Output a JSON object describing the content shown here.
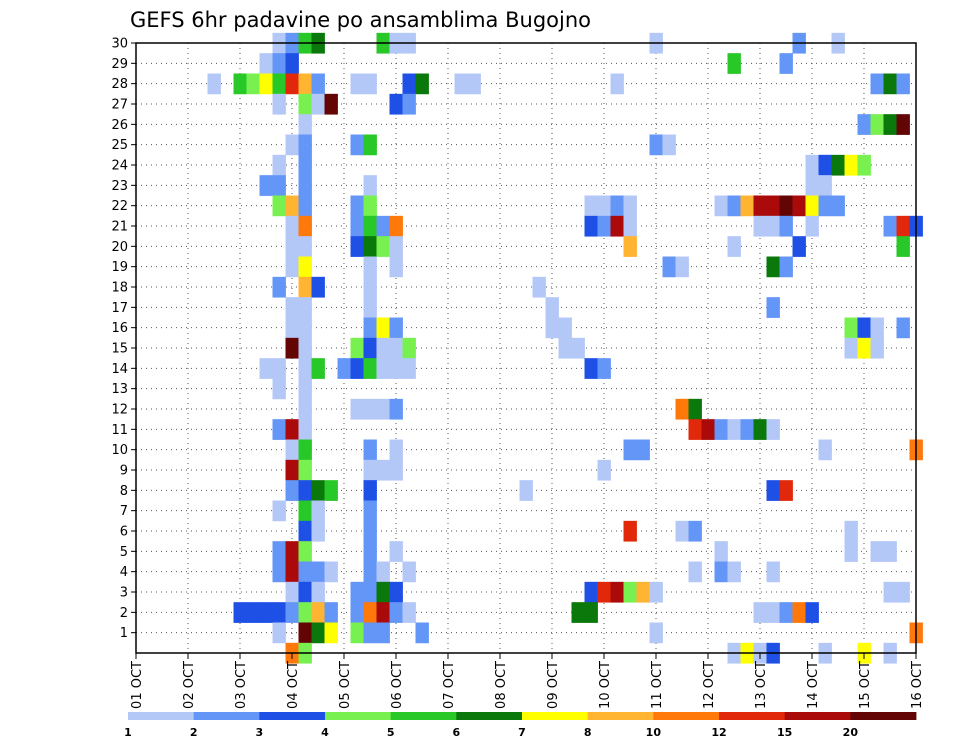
{
  "chart_data": {
    "type": "heatmap",
    "title": "GEFS 6hr padavine po ansamblima Bugojno",
    "xlabel": "",
    "ylabel": "",
    "x_tick_labels": [
      "01 OCT",
      "02 OCT",
      "03 OCT",
      "04 OCT",
      "05 OCT",
      "06 OCT",
      "07 OCT",
      "08 OCT",
      "09 OCT",
      "10 OCT",
      "11 OCT",
      "12 OCT",
      "13 OCT",
      "14 OCT",
      "15 OCT",
      "16 OCT"
    ],
    "y_tick_labels": [
      "1",
      "2",
      "3",
      "4",
      "5",
      "6",
      "7",
      "8",
      "9",
      "10",
      "11",
      "12",
      "13",
      "14",
      "15",
      "16",
      "17",
      "18",
      "19",
      "20",
      "21",
      "22",
      "23",
      "24",
      "25",
      "26",
      "27",
      "28",
      "29",
      "30"
    ],
    "x_range_steps": [
      0,
      60
    ],
    "y_range": [
      0,
      30
    ],
    "grid": true,
    "legend": {
      "placement": "bottom",
      "levels": [
        "1",
        "2",
        "3",
        "4",
        "5",
        "6",
        "7",
        "8",
        "10",
        "12",
        "15",
        "20"
      ],
      "colors": [
        "#b4c8f8",
        "#6496f8",
        "#1e50e6",
        "#78f050",
        "#28c828",
        "#0a780a",
        "#ffff00",
        "#ffb432",
        "#ff780a",
        "#e1280a",
        "#aa0a0a",
        "#640505"
      ]
    },
    "cells": [
      [
        11,
        30,
        1
      ],
      [
        12,
        30,
        2
      ],
      [
        13,
        30,
        5
      ],
      [
        14,
        30,
        6
      ],
      [
        19,
        30,
        5
      ],
      [
        20,
        30,
        1
      ],
      [
        21,
        30,
        1
      ],
      [
        40,
        30,
        1
      ],
      [
        51,
        30,
        2
      ],
      [
        54,
        30,
        1
      ],
      [
        10,
        29,
        1
      ],
      [
        11,
        29,
        2
      ],
      [
        12,
        29,
        3
      ],
      [
        46,
        29,
        5
      ],
      [
        50,
        29,
        2
      ],
      [
        6,
        28,
        1
      ],
      [
        8,
        28,
        5
      ],
      [
        9,
        28,
        4
      ],
      [
        10,
        28,
        7
      ],
      [
        11,
        28,
        5
      ],
      [
        12,
        28,
        10
      ],
      [
        13,
        28,
        8
      ],
      [
        14,
        28,
        2
      ],
      [
        17,
        28,
        1
      ],
      [
        18,
        28,
        1
      ],
      [
        21,
        28,
        3
      ],
      [
        22,
        28,
        6
      ],
      [
        25,
        28,
        1
      ],
      [
        26,
        28,
        1
      ],
      [
        37,
        28,
        1
      ],
      [
        57,
        28,
        2
      ],
      [
        58,
        28,
        6
      ],
      [
        59,
        28,
        2
      ],
      [
        11,
        27,
        1
      ],
      [
        13,
        27,
        4
      ],
      [
        14,
        27,
        1
      ],
      [
        15,
        27,
        12
      ],
      [
        20,
        27,
        3
      ],
      [
        21,
        27,
        2
      ],
      [
        13,
        26,
        1
      ],
      [
        56,
        26,
        2
      ],
      [
        57,
        26,
        4
      ],
      [
        58,
        26,
        6
      ],
      [
        59,
        26,
        12
      ],
      [
        12,
        25,
        1
      ],
      [
        13,
        25,
        2
      ],
      [
        17,
        25,
        2
      ],
      [
        18,
        25,
        5
      ],
      [
        40,
        25,
        2
      ],
      [
        41,
        25,
        1
      ],
      [
        11,
        24,
        1
      ],
      [
        13,
        24,
        2
      ],
      [
        52,
        24,
        1
      ],
      [
        53,
        24,
        3
      ],
      [
        54,
        24,
        6
      ],
      [
        55,
        24,
        7
      ],
      [
        56,
        24,
        4
      ],
      [
        10,
        23,
        2
      ],
      [
        11,
        23,
        2
      ],
      [
        13,
        23,
        2
      ],
      [
        18,
        23,
        1
      ],
      [
        52,
        23,
        1
      ],
      [
        53,
        23,
        1
      ],
      [
        11,
        22,
        4
      ],
      [
        12,
        22,
        8
      ],
      [
        13,
        22,
        2
      ],
      [
        17,
        22,
        2
      ],
      [
        18,
        22,
        4
      ],
      [
        35,
        22,
        1
      ],
      [
        36,
        22,
        1
      ],
      [
        37,
        22,
        2
      ],
      [
        38,
        22,
        1
      ],
      [
        45,
        22,
        1
      ],
      [
        46,
        22,
        2
      ],
      [
        47,
        22,
        8
      ],
      [
        48,
        22,
        11
      ],
      [
        49,
        22,
        11
      ],
      [
        50,
        22,
        12
      ],
      [
        51,
        22,
        11
      ],
      [
        52,
        22,
        7
      ],
      [
        53,
        22,
        2
      ],
      [
        54,
        22,
        2
      ],
      [
        12,
        21,
        1
      ],
      [
        13,
        21,
        9
      ],
      [
        17,
        21,
        2
      ],
      [
        18,
        21,
        5
      ],
      [
        19,
        21,
        2
      ],
      [
        20,
        21,
        9
      ],
      [
        35,
        21,
        3
      ],
      [
        36,
        21,
        2
      ],
      [
        37,
        21,
        11
      ],
      [
        38,
        21,
        1
      ],
      [
        48,
        21,
        1
      ],
      [
        49,
        21,
        1
      ],
      [
        50,
        21,
        2
      ],
      [
        52,
        21,
        1
      ],
      [
        58,
        21,
        2
      ],
      [
        59,
        21,
        10
      ],
      [
        60,
        21,
        3
      ],
      [
        12,
        20,
        1
      ],
      [
        13,
        20,
        1
      ],
      [
        17,
        20,
        3
      ],
      [
        18,
        20,
        6
      ],
      [
        19,
        20,
        4
      ],
      [
        20,
        20,
        1
      ],
      [
        38,
        20,
        8
      ],
      [
        46,
        20,
        1
      ],
      [
        51,
        20,
        3
      ],
      [
        59,
        20,
        5
      ],
      [
        12,
        19,
        1
      ],
      [
        13,
        19,
        7
      ],
      [
        18,
        19,
        1
      ],
      [
        20,
        19,
        1
      ],
      [
        41,
        19,
        2
      ],
      [
        42,
        19,
        1
      ],
      [
        49,
        19,
        6
      ],
      [
        50,
        19,
        2
      ],
      [
        11,
        18,
        2
      ],
      [
        13,
        18,
        8
      ],
      [
        14,
        18,
        3
      ],
      [
        18,
        18,
        1
      ],
      [
        31,
        18,
        1
      ],
      [
        12,
        17,
        1
      ],
      [
        13,
        17,
        1
      ],
      [
        18,
        17,
        1
      ],
      [
        32,
        17,
        1
      ],
      [
        49,
        17,
        2
      ],
      [
        12,
        16,
        1
      ],
      [
        13,
        16,
        1
      ],
      [
        18,
        16,
        2
      ],
      [
        19,
        16,
        7
      ],
      [
        20,
        16,
        2
      ],
      [
        32,
        16,
        1
      ],
      [
        33,
        16,
        1
      ],
      [
        55,
        16,
        4
      ],
      [
        56,
        16,
        3
      ],
      [
        57,
        16,
        1
      ],
      [
        59,
        16,
        2
      ],
      [
        12,
        15,
        12
      ],
      [
        13,
        15,
        1
      ],
      [
        17,
        15,
        4
      ],
      [
        18,
        15,
        3
      ],
      [
        19,
        15,
        1
      ],
      [
        20,
        15,
        1
      ],
      [
        21,
        15,
        4
      ],
      [
        33,
        15,
        1
      ],
      [
        34,
        15,
        1
      ],
      [
        55,
        15,
        1
      ],
      [
        56,
        15,
        7
      ],
      [
        57,
        15,
        1
      ],
      [
        10,
        14,
        1
      ],
      [
        11,
        14,
        1
      ],
      [
        13,
        14,
        1
      ],
      [
        14,
        14,
        5
      ],
      [
        16,
        14,
        2
      ],
      [
        17,
        14,
        3
      ],
      [
        18,
        14,
        5
      ],
      [
        19,
        14,
        1
      ],
      [
        20,
        14,
        1
      ],
      [
        21,
        14,
        1
      ],
      [
        35,
        14,
        3
      ],
      [
        36,
        14,
        2
      ],
      [
        11,
        13,
        1
      ],
      [
        13,
        13,
        1
      ],
      [
        13,
        12,
        1
      ],
      [
        17,
        12,
        1
      ],
      [
        18,
        12,
        1
      ],
      [
        19,
        12,
        1
      ],
      [
        20,
        12,
        2
      ],
      [
        42,
        12,
        9
      ],
      [
        43,
        12,
        6
      ],
      [
        11,
        11,
        2
      ],
      [
        12,
        11,
        11
      ],
      [
        13,
        11,
        1
      ],
      [
        43,
        11,
        10
      ],
      [
        44,
        11,
        11
      ],
      [
        45,
        11,
        2
      ],
      [
        46,
        11,
        1
      ],
      [
        47,
        11,
        2
      ],
      [
        48,
        11,
        6
      ],
      [
        49,
        11,
        1
      ],
      [
        12,
        10,
        1
      ],
      [
        13,
        10,
        5
      ],
      [
        18,
        10,
        2
      ],
      [
        20,
        10,
        1
      ],
      [
        38,
        10,
        2
      ],
      [
        39,
        10,
        2
      ],
      [
        53,
        10,
        1
      ],
      [
        60,
        10,
        9
      ],
      [
        12,
        9,
        11
      ],
      [
        13,
        9,
        4
      ],
      [
        18,
        9,
        1
      ],
      [
        19,
        9,
        1
      ],
      [
        20,
        9,
        1
      ],
      [
        36,
        9,
        1
      ],
      [
        12,
        8,
        2
      ],
      [
        13,
        8,
        3
      ],
      [
        14,
        8,
        6
      ],
      [
        15,
        8,
        5
      ],
      [
        18,
        8,
        3
      ],
      [
        30,
        8,
        1
      ],
      [
        49,
        8,
        3
      ],
      [
        50,
        8,
        10
      ],
      [
        11,
        7,
        1
      ],
      [
        13,
        7,
        5
      ],
      [
        14,
        7,
        1
      ],
      [
        18,
        7,
        2
      ],
      [
        13,
        6,
        3
      ],
      [
        14,
        6,
        1
      ],
      [
        18,
        6,
        2
      ],
      [
        38,
        6,
        10
      ],
      [
        42,
        6,
        1
      ],
      [
        43,
        6,
        2
      ],
      [
        55,
        6,
        1
      ],
      [
        11,
        5,
        2
      ],
      [
        12,
        5,
        11
      ],
      [
        13,
        5,
        4
      ],
      [
        18,
        5,
        2
      ],
      [
        20,
        5,
        1
      ],
      [
        45,
        5,
        1
      ],
      [
        55,
        5,
        1
      ],
      [
        57,
        5,
        1
      ],
      [
        58,
        5,
        1
      ],
      [
        11,
        4,
        2
      ],
      [
        12,
        4,
        11
      ],
      [
        13,
        4,
        2
      ],
      [
        14,
        4,
        2
      ],
      [
        15,
        4,
        1
      ],
      [
        18,
        4,
        2
      ],
      [
        19,
        4,
        1
      ],
      [
        21,
        4,
        1
      ],
      [
        43,
        4,
        1
      ],
      [
        45,
        4,
        2
      ],
      [
        46,
        4,
        1
      ],
      [
        49,
        4,
        1
      ],
      [
        12,
        3,
        1
      ],
      [
        13,
        3,
        3
      ],
      [
        14,
        3,
        1
      ],
      [
        17,
        3,
        2
      ],
      [
        18,
        3,
        2
      ],
      [
        19,
        3,
        6
      ],
      [
        20,
        3,
        3
      ],
      [
        35,
        3,
        3
      ],
      [
        36,
        3,
        10
      ],
      [
        37,
        3,
        11
      ],
      [
        38,
        3,
        4
      ],
      [
        39,
        3,
        8
      ],
      [
        40,
        3,
        1
      ],
      [
        58,
        3,
        1
      ],
      [
        59,
        3,
        1
      ],
      [
        8,
        2,
        3
      ],
      [
        9,
        2,
        3
      ],
      [
        10,
        2,
        3
      ],
      [
        11,
        2,
        3
      ],
      [
        12,
        2,
        2
      ],
      [
        13,
        2,
        4
      ],
      [
        14,
        2,
        8
      ],
      [
        15,
        2,
        2
      ],
      [
        17,
        2,
        2
      ],
      [
        18,
        2,
        9
      ],
      [
        19,
        2,
        11
      ],
      [
        20,
        2,
        2
      ],
      [
        21,
        2,
        1
      ],
      [
        34,
        2,
        6
      ],
      [
        35,
        2,
        6
      ],
      [
        48,
        2,
        1
      ],
      [
        49,
        2,
        1
      ],
      [
        50,
        2,
        2
      ],
      [
        51,
        2,
        9
      ],
      [
        52,
        2,
        3
      ],
      [
        11,
        1,
        1
      ],
      [
        13,
        1,
        12
      ],
      [
        14,
        1,
        6
      ],
      [
        15,
        1,
        7
      ],
      [
        17,
        1,
        4
      ],
      [
        18,
        1,
        2
      ],
      [
        19,
        1,
        2
      ],
      [
        22,
        1,
        2
      ],
      [
        40,
        1,
        1
      ],
      [
        60,
        1,
        9
      ],
      [
        12,
        0,
        9
      ],
      [
        13,
        0,
        4
      ],
      [
        46,
        0,
        1
      ],
      [
        47,
        0,
        7
      ],
      [
        48,
        0,
        1
      ],
      [
        49,
        0,
        3
      ],
      [
        53,
        0,
        1
      ],
      [
        56,
        0,
        7
      ],
      [
        58,
        0,
        1
      ]
    ]
  }
}
